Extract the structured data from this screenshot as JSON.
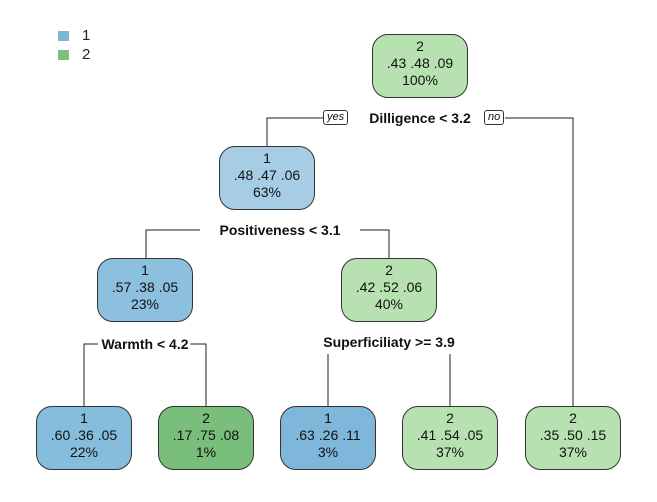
{
  "colors": {
    "class_1_legend": "#7eb6d6",
    "class_2_legend": "#7dbf7d",
    "edge": "#222222"
  },
  "legend": [
    {
      "label": "1",
      "color": "#7eb6d6"
    },
    {
      "label": "2",
      "color": "#7dbf7d"
    }
  ],
  "nodes": {
    "root": {
      "cls": "2",
      "p1": ".43",
      "p2": ".48",
      "p3": ".09",
      "pct": "100%",
      "fill": "#b8e1b1"
    },
    "n_l": {
      "cls": "1",
      "p1": ".48",
      "p2": ".47",
      "p3": ".06",
      "pct": "63%",
      "fill": "#a6cde4"
    },
    "n_ll": {
      "cls": "1",
      "p1": ".57",
      "p2": ".38",
      "p3": ".05",
      "pct": "23%",
      "fill": "#8dbfde"
    },
    "n_lr": {
      "cls": "2",
      "p1": ".42",
      "p2": ".52",
      "p3": ".06",
      "pct": "40%",
      "fill": "#b8e1b1"
    },
    "leaf1": {
      "cls": "1",
      "p1": ".60",
      "p2": ".36",
      "p3": ".05",
      "pct": "22%",
      "fill": "#86bcdc"
    },
    "leaf2": {
      "cls": "2",
      "p1": ".17",
      "p2": ".75",
      "p3": ".08",
      "pct": "1%",
      "fill": "#79be7a"
    },
    "leaf3": {
      "cls": "1",
      "p1": ".63",
      "p2": ".26",
      "p3": ".11",
      "pct": "3%",
      "fill": "#7fb7da"
    },
    "leaf4": {
      "cls": "2",
      "p1": ".41",
      "p2": ".54",
      "p3": ".05",
      "pct": "37%",
      "fill": "#b8e1b1"
    },
    "leaf5": {
      "cls": "2",
      "p1": ".35",
      "p2": ".50",
      "p3": ".15",
      "pct": "37%",
      "fill": "#b8e1b1"
    }
  },
  "splits": {
    "root": "Dilligence < 3.2",
    "n_l": "Positiveness < 3.1",
    "n_ll": "Warmth < 4.2",
    "n_lr": "Superficiliaty >= 3.9"
  },
  "edge_labels": {
    "yes": "yes",
    "no": "no"
  }
}
